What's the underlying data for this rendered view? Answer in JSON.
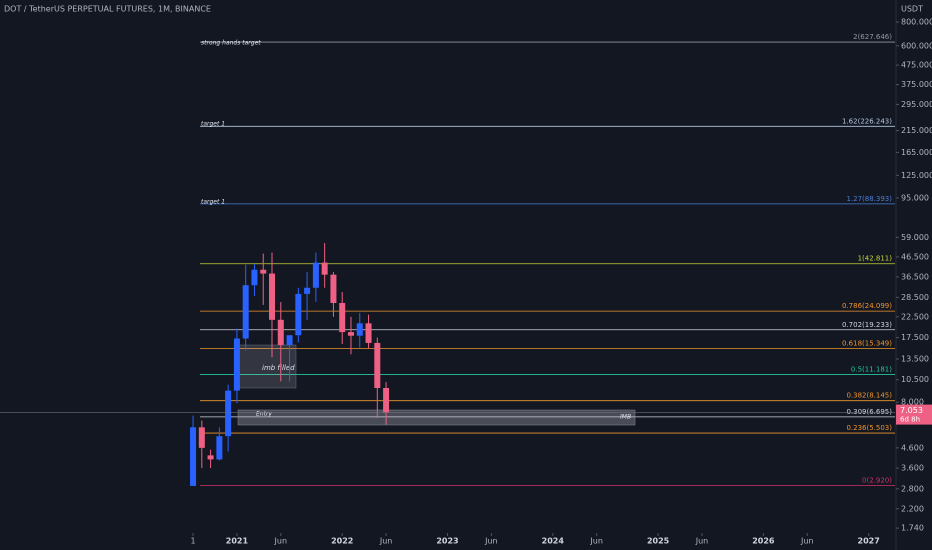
{
  "chart_data": {
    "type": "candlestick",
    "title": "DOT / TetherUS PERPETUAL FUTURES, 1M, BINANCE",
    "y_axis_label": "USDT",
    "log_scale": true,
    "up_color": "#2962ff",
    "down_color": "#ef6085",
    "x": [
      "2020-08",
      "2020-09",
      "2020-10",
      "2020-11",
      "2020-12",
      "2021-01",
      "2021-02",
      "2021-03",
      "2021-04",
      "2021-05",
      "2021-06",
      "2021-07",
      "2021-08",
      "2021-09",
      "2021-10",
      "2021-11",
      "2021-12",
      "2022-01",
      "2022-02",
      "2022-03",
      "2022-04",
      "2022-05",
      "2022-06"
    ],
    "open": [
      2.9,
      5.9,
      4.2,
      4.0,
      5.3,
      9.2,
      17.3,
      33,
      39.8,
      38,
      21.7,
      16,
      18,
      29.7,
      32,
      43.4,
      37.5,
      26.6,
      18.7,
      17.9,
      20.8,
      16.4,
      9.5
    ],
    "high": [
      6.8,
      6.4,
      4.5,
      5.9,
      9.9,
      19.5,
      42.3,
      42.6,
      48.4,
      49,
      26.9,
      18,
      32,
      38.7,
      49,
      55,
      38.7,
      30.4,
      22.5,
      23.6,
      23.1,
      17.5,
      10.2
    ],
    "low": [
      2.9,
      3.6,
      3.6,
      3.95,
      4.4,
      7.9,
      15,
      29,
      26,
      13.8,
      10.3,
      10.3,
      16.5,
      21.7,
      27,
      32,
      22.5,
      16.2,
      14.3,
      15.5,
      15.4,
      6.6,
      6.1
    ],
    "close": [
      5.9,
      4.6,
      4.0,
      5.3,
      9.2,
      17.3,
      33,
      39.8,
      38,
      21.7,
      16,
      18,
      29.7,
      32,
      43.4,
      37.5,
      26.6,
      18.7,
      17.9,
      20.8,
      16.4,
      9.5,
      7.05
    ],
    "xlim": [
      "2018-10",
      "2027-04"
    ],
    "xticks": [
      {
        "value": "2020-08",
        "label": "1"
      },
      {
        "value": "2021-01",
        "label": "2021"
      },
      {
        "value": "2021-06",
        "label": "Jun"
      },
      {
        "value": "2022-01",
        "label": "2022"
      },
      {
        "value": "2022-06",
        "label": "Jun"
      },
      {
        "value": "2023-01",
        "label": "2023"
      },
      {
        "value": "2023-06",
        "label": "Jun"
      },
      {
        "value": "2024-01",
        "label": "2024"
      },
      {
        "value": "2024-06",
        "label": "Jun"
      },
      {
        "value": "2025-01",
        "label": "2025"
      },
      {
        "value": "2025-06",
        "label": "Jun"
      },
      {
        "value": "2026-01",
        "label": "2026"
      },
      {
        "value": "2026-06",
        "label": "Jun"
      },
      {
        "value": "2027-01",
        "label": "2027"
      }
    ],
    "ylim": [
      1.64,
      1045
    ],
    "yticks": [
      {
        "value": 800,
        "label": "800.000"
      },
      {
        "value": 600,
        "label": "600.000"
      },
      {
        "value": 475,
        "label": "475.000"
      },
      {
        "value": 375,
        "label": "375.000"
      },
      {
        "value": 295,
        "label": "295.000"
      },
      {
        "value": 215,
        "label": "215.000"
      },
      {
        "value": 165,
        "label": "165.000"
      },
      {
        "value": 125,
        "label": "125.000"
      },
      {
        "value": 95,
        "label": "95.000"
      },
      {
        "value": 59,
        "label": "59.000"
      },
      {
        "value": 46.5,
        "label": "46.500"
      },
      {
        "value": 36.5,
        "label": "36.500"
      },
      {
        "value": 28.5,
        "label": "28.500"
      },
      {
        "value": 22.5,
        "label": "22.500"
      },
      {
        "value": 17.5,
        "label": "17.500"
      },
      {
        "value": 13.5,
        "label": "13.500"
      },
      {
        "value": 10.5,
        "label": "10.500"
      },
      {
        "value": 8,
        "label": "8.000"
      },
      {
        "value": 4.6,
        "label": "4.600"
      },
      {
        "value": 3.6,
        "label": "3.600"
      },
      {
        "value": 2.8,
        "label": "2.800"
      },
      {
        "value": 2.2,
        "label": "2.200"
      },
      {
        "value": 1.74,
        "label": "1.740"
      }
    ],
    "levels": [
      {
        "label": "2(627.646)",
        "value": 627.646,
        "color": "#9598a1"
      },
      {
        "label": "1.62(226.243)",
        "value": 226.243,
        "color": "#b2c8e0"
      },
      {
        "label": "1.27(88.393)",
        "value": 88.393,
        "color": "#4a7fd8"
      },
      {
        "label": "1(42.811)",
        "value": 42.811,
        "color": "#c6d43a"
      },
      {
        "label": "0.786(24.099)",
        "value": 24.099,
        "color": "#f0952a"
      },
      {
        "label": "0.702(19.233)",
        "value": 19.233,
        "color": "#d1d4dc"
      },
      {
        "label": "0.618(15.349)",
        "value": 15.349,
        "color": "#f0952a"
      },
      {
        "label": "0.5(11.181)",
        "value": 11.181,
        "color": "#26c6a0"
      },
      {
        "label": "0.382(8.145)",
        "value": 8.145,
        "color": "#f0952a"
      },
      {
        "label": "0.309(6.695)",
        "value": 6.695,
        "color": "#d1d4dc"
      },
      {
        "label": "0.236(5.503)",
        "value": 5.503,
        "color": "#f0952a"
      },
      {
        "label": "0(2.920)",
        "value": 2.92,
        "color": "#d0316a"
      }
    ],
    "annotations": {
      "strong": "strong hands target",
      "target_a": "target 1",
      "target_b": "target 1",
      "imb_filled": "imb filled",
      "entry": "Entry",
      "imb": "IMB"
    },
    "last_price": {
      "value": 7.053,
      "countdown": "6d 8h"
    }
  }
}
